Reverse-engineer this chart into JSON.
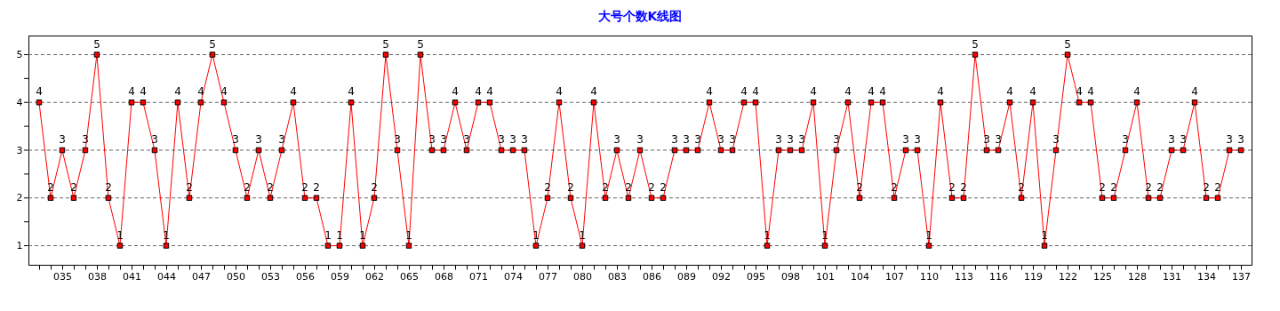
{
  "chart_data": {
    "type": "line",
    "title": "大号个数K线图",
    "categories": [
      null,
      null,
      "035",
      null,
      null,
      "038",
      null,
      null,
      "041",
      null,
      null,
      "044",
      null,
      null,
      "047",
      null,
      null,
      "050",
      null,
      null,
      "053",
      null,
      null,
      "056",
      null,
      null,
      "059",
      null,
      null,
      "062",
      null,
      null,
      "065",
      null,
      null,
      "068",
      null,
      null,
      "071",
      null,
      null,
      "074",
      null,
      null,
      "077",
      null,
      null,
      "080",
      null,
      null,
      "083",
      null,
      null,
      "086",
      null,
      null,
      "089",
      null,
      null,
      "092",
      null,
      null,
      "095",
      null,
      null,
      "098",
      null,
      null,
      "101",
      null,
      null,
      "104",
      null,
      null,
      "107",
      null,
      null,
      "110",
      null,
      null,
      "113",
      null,
      null,
      "116",
      null,
      null,
      "119",
      null,
      null,
      "122",
      null,
      null,
      "125",
      null,
      null,
      "128",
      null,
      null,
      "131",
      null,
      null,
      "134",
      null,
      null,
      "137"
    ],
    "series": [
      {
        "color": "#ff0000",
        "values": [
          4,
          2,
          3,
          2,
          3,
          5,
          2,
          1,
          4,
          4,
          3,
          1,
          4,
          2,
          4,
          5,
          4,
          3,
          2,
          3,
          2,
          3,
          4,
          2,
          2,
          1,
          1,
          4,
          1,
          2,
          5,
          3,
          1,
          5,
          3,
          3,
          4,
          3,
          4,
          4,
          3,
          3,
          3,
          1,
          2,
          4,
          2,
          1,
          4,
          2,
          3,
          2,
          3,
          2,
          2,
          3,
          3,
          3,
          4,
          3,
          3,
          4,
          4,
          1,
          3,
          3,
          3,
          4,
          1,
          3,
          4,
          2,
          4,
          4,
          2,
          3,
          3,
          1,
          4,
          2,
          2,
          5,
          3,
          3,
          4,
          2,
          4,
          1,
          3,
          5,
          4,
          4,
          2,
          2,
          3,
          4,
          2,
          2,
          3,
          3,
          4,
          2,
          2,
          3,
          3
        ]
      }
    ],
    "ylim": [
      0.6,
      5.4
    ],
    "yticks": [
      1,
      {
        "value": 1.5,
        "label": null
      },
      2,
      {
        "value": 2.5,
        "label": null
      },
      3,
      {
        "value": 3.5,
        "label": null
      },
      4,
      {
        "value": 4.5,
        "label": null
      },
      5
    ],
    "grid": "y",
    "marker": "square",
    "line_style": "solid",
    "data_labels": true
  }
}
